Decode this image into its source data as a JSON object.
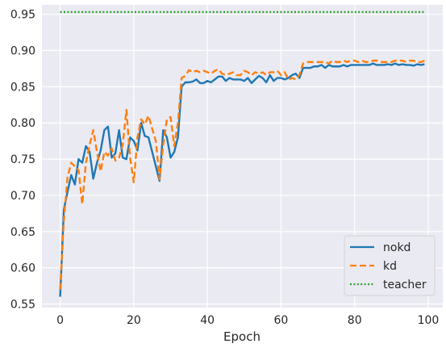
{
  "chart_data": {
    "type": "line",
    "title": "",
    "xlabel": "Epoch",
    "ylabel": "",
    "xlim": [
      -4.95,
      103.95
    ],
    "ylim": [
      0.545,
      0.963
    ],
    "xticks": [
      0,
      20,
      40,
      60,
      80,
      100
    ],
    "yticks": [
      0.55,
      0.6,
      0.65,
      0.7,
      0.75,
      0.8,
      0.85,
      0.9,
      0.95
    ],
    "grid": true,
    "legend_position": "bottom-right",
    "colors": {
      "nokd": "#1f77b4",
      "kd": "#ff7f0e",
      "teacher": "#2ca02c",
      "background": "#eaeaf2",
      "grid": "#ffffff"
    },
    "x": [
      0,
      1,
      2,
      3,
      4,
      5,
      6,
      7,
      8,
      9,
      10,
      11,
      12,
      13,
      14,
      15,
      16,
      17,
      18,
      19,
      20,
      21,
      22,
      23,
      24,
      25,
      26,
      27,
      28,
      29,
      30,
      31,
      32,
      33,
      34,
      35,
      36,
      37,
      38,
      39,
      40,
      41,
      42,
      43,
      44,
      45,
      46,
      47,
      48,
      49,
      50,
      51,
      52,
      53,
      54,
      55,
      56,
      57,
      58,
      59,
      60,
      61,
      62,
      63,
      64,
      65,
      66,
      67,
      68,
      69,
      70,
      71,
      72,
      73,
      74,
      75,
      76,
      77,
      78,
      79,
      80,
      81,
      82,
      83,
      84,
      85,
      86,
      87,
      88,
      89,
      90,
      91,
      92,
      93,
      94,
      95,
      96,
      97,
      98,
      99
    ],
    "series": [
      {
        "name": "nokd",
        "style": "solid",
        "values": [
          0.56,
          0.68,
          0.705,
          0.728,
          0.715,
          0.75,
          0.745,
          0.768,
          0.76,
          0.723,
          0.745,
          0.762,
          0.79,
          0.795,
          0.752,
          0.758,
          0.79,
          0.752,
          0.75,
          0.78,
          0.775,
          0.762,
          0.8,
          0.782,
          0.78,
          0.76,
          0.74,
          0.72,
          0.79,
          0.78,
          0.752,
          0.76,
          0.78,
          0.85,
          0.856,
          0.856,
          0.857,
          0.86,
          0.855,
          0.855,
          0.858,
          0.856,
          0.86,
          0.864,
          0.864,
          0.858,
          0.862,
          0.86,
          0.86,
          0.86,
          0.858,
          0.862,
          0.855,
          0.86,
          0.865,
          0.862,
          0.856,
          0.866,
          0.858,
          0.862,
          0.862,
          0.86,
          0.862,
          0.866,
          0.868,
          0.862,
          0.876,
          0.876,
          0.876,
          0.878,
          0.878,
          0.88,
          0.876,
          0.88,
          0.878,
          0.878,
          0.878,
          0.88,
          0.878,
          0.88,
          0.88,
          0.88,
          0.88,
          0.88,
          0.88,
          0.882,
          0.88,
          0.88,
          0.88,
          0.881,
          0.88,
          0.882,
          0.88,
          0.881,
          0.88,
          0.88,
          0.879,
          0.881,
          0.88,
          0.881
        ]
      },
      {
        "name": "kd",
        "style": "dashed",
        "values": [
          0.57,
          0.665,
          0.725,
          0.745,
          0.74,
          0.735,
          0.688,
          0.745,
          0.77,
          0.79,
          0.76,
          0.733,
          0.76,
          0.755,
          0.765,
          0.748,
          0.752,
          0.77,
          0.818,
          0.752,
          0.718,
          0.78,
          0.805,
          0.798,
          0.81,
          0.792,
          0.775,
          0.722,
          0.77,
          0.805,
          0.808,
          0.768,
          0.8,
          0.862,
          0.865,
          0.873,
          0.87,
          0.872,
          0.87,
          0.872,
          0.87,
          0.868,
          0.872,
          0.874,
          0.868,
          0.866,
          0.868,
          0.87,
          0.866,
          0.866,
          0.872,
          0.87,
          0.866,
          0.87,
          0.868,
          0.87,
          0.866,
          0.87,
          0.87,
          0.872,
          0.866,
          0.87,
          0.86,
          0.862,
          0.86,
          0.866,
          0.882,
          0.884,
          0.884,
          0.884,
          0.884,
          0.884,
          0.884,
          0.882,
          0.886,
          0.884,
          0.884,
          0.886,
          0.884,
          0.886,
          0.886,
          0.884,
          0.886,
          0.884,
          0.884,
          0.886,
          0.886,
          0.884,
          0.884,
          0.884,
          0.884,
          0.886,
          0.886,
          0.886,
          0.884,
          0.886,
          0.886,
          0.884,
          0.884,
          0.886
        ]
      },
      {
        "name": "teacher",
        "style": "dotted",
        "values": [
          0.953,
          0.953,
          0.953,
          0.953,
          0.953,
          0.953,
          0.953,
          0.953,
          0.953,
          0.953,
          0.953,
          0.953,
          0.953,
          0.953,
          0.953,
          0.953,
          0.953,
          0.953,
          0.953,
          0.953,
          0.953,
          0.953,
          0.953,
          0.953,
          0.953,
          0.953,
          0.953,
          0.953,
          0.953,
          0.953,
          0.953,
          0.953,
          0.953,
          0.953,
          0.953,
          0.953,
          0.953,
          0.953,
          0.953,
          0.953,
          0.953,
          0.953,
          0.953,
          0.953,
          0.953,
          0.953,
          0.953,
          0.953,
          0.953,
          0.953,
          0.953,
          0.953,
          0.953,
          0.953,
          0.953,
          0.953,
          0.953,
          0.953,
          0.953,
          0.953,
          0.953,
          0.953,
          0.953,
          0.953,
          0.953,
          0.953,
          0.953,
          0.953,
          0.953,
          0.953,
          0.953,
          0.953,
          0.953,
          0.953,
          0.953,
          0.953,
          0.953,
          0.953,
          0.953,
          0.953,
          0.953,
          0.953,
          0.953,
          0.953,
          0.953,
          0.953,
          0.953,
          0.953,
          0.953,
          0.953,
          0.953,
          0.953,
          0.953,
          0.953,
          0.953,
          0.953,
          0.953,
          0.953,
          0.953,
          0.953
        ]
      }
    ]
  }
}
